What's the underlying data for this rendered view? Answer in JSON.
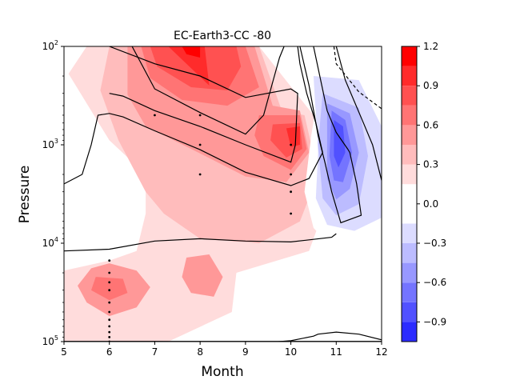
{
  "chart_data": {
    "type": "contour",
    "title": "EC-Earth3-CC -80",
    "xlabel": "Month",
    "ylabel": "Pressure",
    "xlim": [
      5,
      12
    ],
    "ylim": [
      100,
      100000
    ],
    "y_scale": "log",
    "y_inverted": true,
    "x_ticks": [
      "5",
      "6",
      "7",
      "8",
      "9",
      "10",
      "11",
      "12"
    ],
    "y_tick_labels": [
      {
        "value": 100,
        "mant": "10",
        "exp": "2"
      },
      {
        "value": 1000,
        "mant": "10",
        "exp": "3"
      },
      {
        "value": 10000,
        "mant": "10",
        "exp": "4"
      },
      {
        "value": 100000,
        "mant": "10",
        "exp": "5"
      }
    ],
    "colorbar": {
      "min": -1.05,
      "max": 1.2,
      "levels": [
        -1.05,
        -0.9,
        -0.75,
        -0.6,
        -0.45,
        -0.3,
        -0.15,
        0.15,
        0.3,
        0.45,
        0.6,
        0.75,
        0.9,
        1.05,
        1.2
      ],
      "colors": [
        "#2b2bff",
        "#5151ff",
        "#7474ff",
        "#9898ff",
        "#bcbcff",
        "#dcdcff",
        "#ffffff",
        "#ffdcdc",
        "#ffbcbc",
        "#ff9898",
        "#ff7474",
        "#ff5151",
        "#ff2b2b",
        "#ff0000"
      ],
      "tick_values": [
        1.2,
        0.9,
        0.6,
        0.3,
        0.0,
        -0.3,
        -0.6,
        -0.9
      ],
      "tick_labels": [
        "1.2",
        "0.9",
        "0.6",
        "0.3",
        "0.0",
        "−0.3",
        "−0.6",
        "−0.9"
      ]
    },
    "filled_regions": [
      {
        "level": 0.15,
        "pts": [
          [
            5.5,
            100
          ],
          [
            9.3,
            100
          ],
          [
            10.5,
            500
          ],
          [
            10.6,
            2000
          ],
          [
            10.7,
            5000
          ],
          [
            10.4,
            12000
          ],
          [
            8.8,
            20000
          ],
          [
            8.7,
            50000
          ],
          [
            7.3,
            100000
          ],
          [
            5,
            100000
          ],
          [
            5,
            19000
          ],
          [
            6,
            15000
          ],
          [
            6.6,
            12000
          ],
          [
            6.8,
            5000
          ],
          [
            6.8,
            2000
          ],
          [
            6,
            900
          ],
          [
            5.1,
            190
          ]
        ]
      },
      {
        "level": 0.3,
        "pts": [
          [
            6,
            100
          ],
          [
            9.3,
            100
          ],
          [
            9.8,
            450
          ],
          [
            10.3,
            500
          ],
          [
            10.6,
            2000
          ],
          [
            10.2,
            6000
          ],
          [
            9.3,
            10000
          ],
          [
            8,
            9000
          ],
          [
            7.2,
            5000
          ],
          [
            6.8,
            3000
          ],
          [
            6.2,
            900
          ],
          [
            5.8,
            280
          ]
        ]
      },
      {
        "level": 0.45,
        "pts": [
          [
            6.4,
            100
          ],
          [
            9.2,
            100
          ],
          [
            9.6,
            400
          ],
          [
            10.2,
            450
          ],
          [
            10.4,
            1200
          ],
          [
            9.9,
            2400
          ],
          [
            9,
            2100
          ],
          [
            7.8,
            1100
          ],
          [
            6.8,
            650
          ],
          [
            6.4,
            310
          ]
        ]
      },
      {
        "level": 0.45,
        "pts": [
          [
            5.6,
            18000
          ],
          [
            6,
            16000
          ],
          [
            6.6,
            19000
          ],
          [
            6.9,
            28000
          ],
          [
            6.6,
            45000
          ],
          [
            6,
            55000
          ],
          [
            5.5,
            40000
          ],
          [
            5.3,
            27000
          ]
        ]
      },
      {
        "level": 0.45,
        "pts": [
          [
            7.7,
            14000
          ],
          [
            8.2,
            13000
          ],
          [
            8.5,
            22000
          ],
          [
            8.3,
            35000
          ],
          [
            7.8,
            32000
          ],
          [
            7.6,
            22000
          ]
        ]
      },
      {
        "level": 0.6,
        "pts": [
          [
            6.7,
            100
          ],
          [
            9,
            100
          ],
          [
            9.3,
            260
          ],
          [
            8.6,
            400
          ],
          [
            7.6,
            350
          ],
          [
            6.9,
            210
          ]
        ]
      },
      {
        "level": 0.6,
        "pts": [
          [
            9.3,
            500
          ],
          [
            10.2,
            500
          ],
          [
            10.35,
            1100
          ],
          [
            10,
            1800
          ],
          [
            9.4,
            1300
          ],
          [
            9.2,
            800
          ]
        ]
      },
      {
        "level": 0.6,
        "pts": [
          [
            5.7,
            22000
          ],
          [
            6.3,
            23000
          ],
          [
            6.4,
            32000
          ],
          [
            6,
            38000
          ],
          [
            5.6,
            30000
          ]
        ]
      },
      {
        "level": 0.75,
        "pts": [
          [
            6.9,
            100
          ],
          [
            8.8,
            100
          ],
          [
            8.9,
            160
          ],
          [
            8.6,
            280
          ],
          [
            7.8,
            260
          ],
          [
            7.05,
            160
          ]
        ]
      },
      {
        "level": 0.75,
        "pts": [
          [
            9.6,
            620
          ],
          [
            10.2,
            600
          ],
          [
            10.25,
            1100
          ],
          [
            9.9,
            1350
          ],
          [
            9.55,
            900
          ]
        ]
      },
      {
        "level": 0.9,
        "pts": [
          [
            7.3,
            100
          ],
          [
            8.1,
            100
          ],
          [
            8.2,
            250
          ],
          [
            7.7,
            150
          ]
        ]
      },
      {
        "level": 0.9,
        "pts": [
          [
            9.9,
            680
          ],
          [
            10.2,
            650
          ],
          [
            10.2,
            1000
          ],
          [
            10,
            1050
          ]
        ]
      },
      {
        "level": 1.05,
        "pts": [
          [
            7.6,
            100
          ],
          [
            8,
            100
          ],
          [
            8,
            130
          ],
          [
            7.7,
            120
          ]
        ]
      },
      {
        "level": -0.15,
        "pts": [
          [
            5,
            660
          ],
          [
            5.3,
            800
          ],
          [
            5.7,
            1500
          ],
          [
            5.5,
            2000
          ],
          [
            5,
            2400
          ]
        ]
      },
      {
        "level": -0.15,
        "pts": [
          [
            9.8,
            100
          ],
          [
            10.3,
            100
          ],
          [
            10.1,
            130
          ],
          [
            9.8,
            115
          ]
        ]
      },
      {
        "level": -0.15,
        "pts": [
          [
            10.1,
            100
          ],
          [
            12,
            100
          ],
          [
            12,
            10000
          ],
          [
            11.4,
            13000
          ],
          [
            10.9,
            11000
          ],
          [
            10.5,
            7000
          ],
          [
            10.3,
            3000
          ],
          [
            10.45,
            800
          ],
          [
            10.6,
            300
          ],
          [
            10.4,
            150
          ]
        ]
      },
      {
        "level": -0.15,
        "pts": [
          [
            11.9,
            100
          ],
          [
            12,
            100
          ],
          [
            12,
            120
          ],
          [
            11.95,
            115
          ]
        ]
      },
      {
        "level": -0.3,
        "pts": [
          [
            10.5,
            200
          ],
          [
            11.5,
            220
          ],
          [
            12,
            650
          ],
          [
            12,
            5500
          ],
          [
            11.4,
            7500
          ],
          [
            10.8,
            6500
          ],
          [
            10.55,
            3500
          ],
          [
            10.6,
            1200
          ]
        ]
      },
      {
        "level": -0.45,
        "pts": [
          [
            10.7,
            300
          ],
          [
            11.5,
            420
          ],
          [
            11.7,
            1300
          ],
          [
            11.5,
            4000
          ],
          [
            11,
            5200
          ],
          [
            10.7,
            3500
          ],
          [
            10.6,
            1000
          ]
        ]
      },
      {
        "level": -0.6,
        "pts": [
          [
            10.8,
            380
          ],
          [
            11.3,
            480
          ],
          [
            11.5,
            1200
          ],
          [
            11.3,
            2800
          ],
          [
            11,
            3600
          ],
          [
            10.8,
            2200
          ]
        ]
      },
      {
        "level": -0.75,
        "pts": [
          [
            10.9,
            450
          ],
          [
            11.2,
            560
          ],
          [
            11.35,
            1200
          ],
          [
            11.15,
            2400
          ],
          [
            10.95,
            2300
          ],
          [
            10.85,
            1300
          ]
        ]
      },
      {
        "level": -0.9,
        "pts": [
          [
            10.95,
            560
          ],
          [
            11.15,
            650
          ],
          [
            11.2,
            1200
          ],
          [
            11.05,
            1700
          ],
          [
            10.95,
            1300
          ]
        ]
      }
    ],
    "contour_lines": [
      {
        "style": "solid",
        "pts": [
          [
            5,
            2500
          ],
          [
            5.4,
            2000
          ],
          [
            5.6,
            1000
          ],
          [
            5.75,
            500
          ],
          [
            6,
            480
          ],
          [
            6.3,
            520
          ],
          [
            7,
            720
          ],
          [
            8,
            1120
          ],
          [
            9,
            1900
          ],
          [
            10,
            2600
          ],
          [
            10.4,
            2200
          ],
          [
            10.7,
            1200
          ],
          [
            10.55,
            600
          ],
          [
            10.35,
            300
          ],
          [
            10.2,
            150
          ],
          [
            10.15,
            100
          ]
        ]
      },
      {
        "style": "solid",
        "pts": [
          [
            6.5,
            100
          ],
          [
            7,
            270
          ],
          [
            8,
            470
          ],
          [
            9,
            780
          ],
          [
            9.4,
            500
          ],
          [
            9.6,
            230
          ],
          [
            9.75,
            130
          ],
          [
            9.85,
            100
          ]
        ]
      },
      {
        "style": "solid",
        "pts": [
          [
            6,
            100
          ],
          [
            7,
            150
          ],
          [
            8,
            200
          ],
          [
            9,
            330
          ],
          [
            10,
            270
          ],
          [
            10.15,
            300
          ],
          [
            10.1,
            1000
          ],
          [
            10,
            1500
          ],
          [
            9,
            1000
          ],
          [
            8,
            650
          ],
          [
            7,
            450
          ],
          [
            6.3,
            320
          ],
          [
            6,
            300
          ]
        ]
      },
      {
        "style": "solid",
        "pts": [
          [
            10.5,
            100
          ],
          [
            10.8,
            450
          ],
          [
            11,
            750
          ],
          [
            11.25,
            1100
          ],
          [
            11.3,
            1200
          ],
          [
            11.45,
            2500
          ],
          [
            11.55,
            5200
          ],
          [
            11.1,
            6200
          ],
          [
            10.9,
            3000
          ],
          [
            10.75,
            1500
          ],
          [
            10.6,
            800
          ],
          [
            10.4,
            250
          ],
          [
            10.2,
            100
          ]
        ]
      },
      {
        "style": "solid",
        "pts": [
          [
            11,
            100
          ],
          [
            11.2,
            220
          ],
          [
            11.6,
            600
          ],
          [
            11.8,
            1000
          ],
          [
            12,
            2300
          ]
        ]
      },
      {
        "style": "solid",
        "pts": [
          [
            5,
            12000
          ],
          [
            6,
            11500
          ],
          [
            7,
            9500
          ],
          [
            8,
            9000
          ],
          [
            9,
            9500
          ],
          [
            10,
            9700
          ],
          [
            10.9,
            8700
          ],
          [
            11,
            8000
          ]
        ]
      },
      {
        "style": "solid",
        "pts": [
          [
            6,
            100000
          ],
          [
            7,
            100000
          ],
          [
            8,
            100500
          ],
          [
            9,
            106000
          ],
          [
            10,
            98000
          ],
          [
            10.5,
            88000
          ],
          [
            10.6,
            84000
          ],
          [
            11,
            80000
          ],
          [
            11.5,
            84000
          ],
          [
            12,
            96000
          ]
        ]
      },
      {
        "style": "solid",
        "pts": [
          [
            5,
            99500
          ],
          [
            12,
            99500
          ]
        ]
      },
      {
        "style": "dashed",
        "pts": [
          [
            10.95,
            100
          ],
          [
            11,
            150
          ],
          [
            11.5,
            290
          ],
          [
            12,
            430
          ]
        ]
      }
    ],
    "dots": [
      [
        7,
        500
      ],
      [
        8,
        500
      ],
      [
        8,
        1000
      ],
      [
        8,
        2000
      ],
      [
        10,
        1000
      ],
      [
        10,
        2000
      ],
      [
        10,
        3000
      ],
      [
        10,
        5000
      ],
      [
        6,
        15000
      ],
      [
        6,
        20000
      ],
      [
        6,
        25000
      ],
      [
        6,
        30000
      ],
      [
        6,
        40000
      ],
      [
        6,
        50000
      ],
      [
        6,
        60000
      ],
      [
        6,
        70000
      ],
      [
        6,
        80000
      ],
      [
        6,
        90000
      ],
      [
        6,
        100000
      ]
    ]
  }
}
